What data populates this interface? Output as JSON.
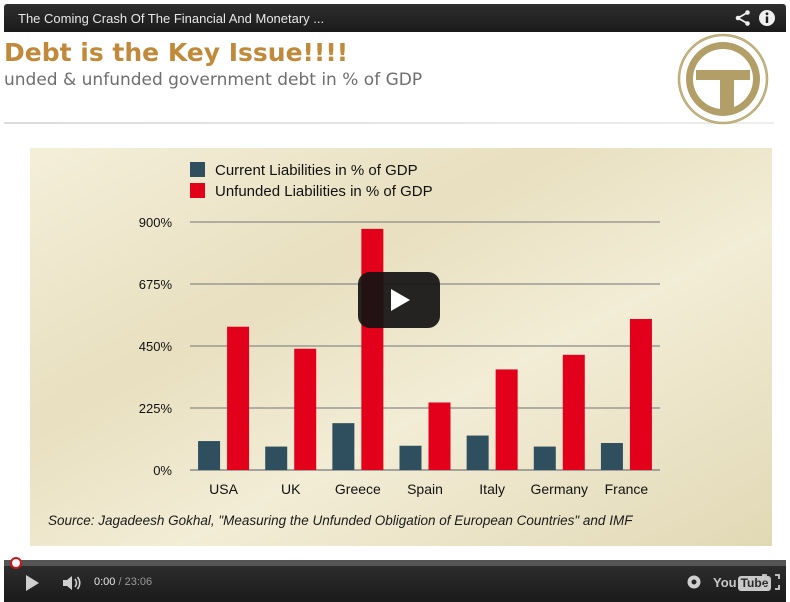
{
  "titlebar": {
    "title": "The Coming Crash Of The Financial And Monetary ..."
  },
  "slide": {
    "title": "Debt is the Key Issue!!!!",
    "subtitle": "unded & unfunded government debt in % of GDP",
    "source": "Source: Jagadeesh Gokhal, \"Measuring the Unfunded Obligation of European Countries\" and IMF"
  },
  "chart_data": {
    "type": "bar",
    "categories": [
      "USA",
      "UK",
      "Greece",
      "Spain",
      "Italy",
      "Germany",
      "France"
    ],
    "series": [
      {
        "name": "Current Liabilities in % of GDP",
        "color": "#2f4f5f",
        "values": [
          105,
          85,
          170,
          88,
          125,
          85,
          98
        ]
      },
      {
        "name": "Unfunded Liabilities in % of GDP",
        "color": "#e3001b",
        "values": [
          520,
          440,
          875,
          245,
          365,
          418,
          548
        ]
      }
    ],
    "yticks": [
      "0%",
      "225%",
      "450%",
      "675%",
      "900%"
    ],
    "ylim": [
      0,
      900
    ],
    "grid": true,
    "legend": "top-left"
  },
  "controls": {
    "current_time": "0:00",
    "separator": " / ",
    "duration": "23:06",
    "youtube_you": "You",
    "youtube_tube": "Tube",
    "progress_fraction": 0
  },
  "icons": {
    "share": "share-icon",
    "info": "info-icon",
    "play": "play-icon",
    "volume": "volume-icon",
    "settings": "gear-icon",
    "fullscreen": "fullscreen-icon"
  },
  "colors": {
    "accent_red": "#c41a1a",
    "title_gold": "#c08a3a"
  }
}
